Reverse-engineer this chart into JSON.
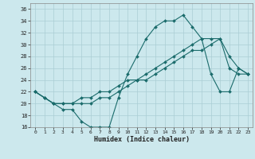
{
  "background_color": "#cce8ed",
  "grid_color": "#aacdd4",
  "line_color": "#1a6b6b",
  "marker_color": "#1a6b6b",
  "xlabel": "Humidex (Indice chaleur)",
  "ylim": [
    16,
    37
  ],
  "xlim": [
    -0.5,
    23.5
  ],
  "yticks": [
    16,
    18,
    20,
    22,
    24,
    26,
    28,
    30,
    32,
    34,
    36
  ],
  "xticks": [
    0,
    1,
    2,
    3,
    4,
    5,
    6,
    7,
    8,
    9,
    10,
    11,
    12,
    13,
    14,
    15,
    16,
    17,
    18,
    19,
    20,
    21,
    22,
    23
  ],
  "curve1_x": [
    0,
    1,
    2,
    3,
    4,
    5,
    6,
    7,
    8,
    9,
    10,
    11,
    12,
    13,
    14,
    15,
    16,
    17,
    18,
    19,
    20,
    21,
    22,
    23
  ],
  "curve1_y": [
    22,
    21,
    20,
    19,
    19,
    17,
    16,
    16,
    16,
    21,
    25,
    28,
    31,
    33,
    34,
    34,
    35,
    33,
    31,
    25,
    22,
    22,
    26,
    25
  ],
  "curve2_x": [
    0,
    1,
    2,
    3,
    4,
    5,
    6,
    7,
    8,
    9,
    10,
    11,
    12,
    13,
    14,
    15,
    16,
    17,
    18,
    19,
    20,
    21,
    22,
    23
  ],
  "curve2_y": [
    22,
    21,
    20,
    20,
    20,
    20,
    20,
    21,
    21,
    22,
    23,
    24,
    24,
    25,
    26,
    27,
    28,
    29,
    29,
    30,
    31,
    26,
    25,
    25
  ],
  "curve3_x": [
    0,
    1,
    2,
    3,
    4,
    5,
    6,
    7,
    8,
    9,
    10,
    11,
    12,
    13,
    14,
    15,
    16,
    17,
    18,
    19,
    20,
    21,
    22,
    23
  ],
  "curve3_y": [
    22,
    21,
    20,
    20,
    20,
    21,
    21,
    22,
    22,
    23,
    24,
    24,
    25,
    26,
    27,
    28,
    29,
    30,
    31,
    31,
    31,
    28,
    26,
    25
  ]
}
